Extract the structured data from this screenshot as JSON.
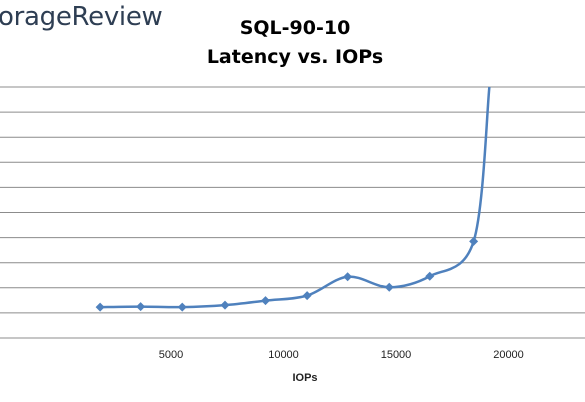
{
  "logo_text": "orageReview",
  "chart_data": {
    "type": "line",
    "title": "SQL-90-10",
    "subtitle": "Latency vs. IOPs",
    "xlabel": "IOPs",
    "ylabel": "",
    "x_ticks": [
      5000,
      10000,
      15000,
      20000
    ],
    "xlim": [
      -2600,
      23400
    ],
    "ylim": [
      0,
      100
    ],
    "grid": true,
    "series": [
      {
        "color": "#4f81bd",
        "marker": "diamond",
        "points": [
          {
            "x": 1850,
            "y": 12.3
          },
          {
            "x": 3650,
            "y": 12.5
          },
          {
            "x": 5500,
            "y": 12.3
          },
          {
            "x": 7400,
            "y": 13.1
          },
          {
            "x": 9200,
            "y": 14.9
          },
          {
            "x": 11050,
            "y": 16.9
          },
          {
            "x": 12850,
            "y": 24.4
          },
          {
            "x": 14700,
            "y": 20.2
          },
          {
            "x": 16500,
            "y": 24.6
          },
          {
            "x": 18450,
            "y": 38.5
          },
          {
            "x": 19150,
            "y": 100
          }
        ]
      }
    ]
  }
}
